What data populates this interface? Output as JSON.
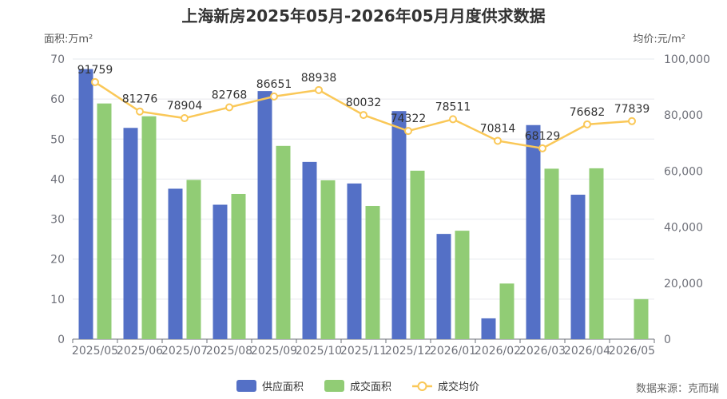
{
  "chart_data": {
    "type": "bar",
    "title": "上海新房2025年05月-2026年05月月度供求数据",
    "y_left_label": "面积:万m²",
    "y_right_label": "均价:元/m²",
    "categories": [
      "2025/05",
      "2025/06",
      "2025/07",
      "2025/08",
      "2025/09",
      "2025/10",
      "2025/11",
      "2025/12",
      "2026/01",
      "2026/02",
      "2026/03",
      "2026/04",
      "2026/05"
    ],
    "series": [
      {
        "name": "供应面积",
        "kind": "bar",
        "axis": "left",
        "color": "#5470c6",
        "values": [
          67.5,
          52.8,
          37.6,
          33.6,
          62.0,
          44.3,
          38.9,
          57.0,
          26.3,
          5.2,
          53.5,
          36.1,
          null
        ]
      },
      {
        "name": "成交面积",
        "kind": "bar",
        "axis": "left",
        "color": "#91cc75",
        "values": [
          58.9,
          55.7,
          39.8,
          36.3,
          48.3,
          39.7,
          33.3,
          42.1,
          27.1,
          13.9,
          42.6,
          42.7,
          10.0
        ]
      },
      {
        "name": "成交均价",
        "kind": "line",
        "axis": "right",
        "color": "#fac858",
        "values": [
          91759,
          81276,
          78904,
          82768,
          86651,
          88938,
          80032,
          74322,
          78511,
          70814,
          68129,
          76682,
          77839
        ]
      }
    ],
    "y_left": {
      "min": 0,
      "max": 70,
      "ticks": [
        0,
        10,
        20,
        30,
        40,
        50,
        60,
        70
      ]
    },
    "y_right": {
      "min": 0,
      "max": 100000,
      "ticks": [
        "0",
        "20,000",
        "40,000",
        "60,000",
        "80,000",
        "100,000"
      ]
    },
    "grid": true,
    "legend": "bottom-center",
    "source": "数据来源：克而瑞"
  }
}
